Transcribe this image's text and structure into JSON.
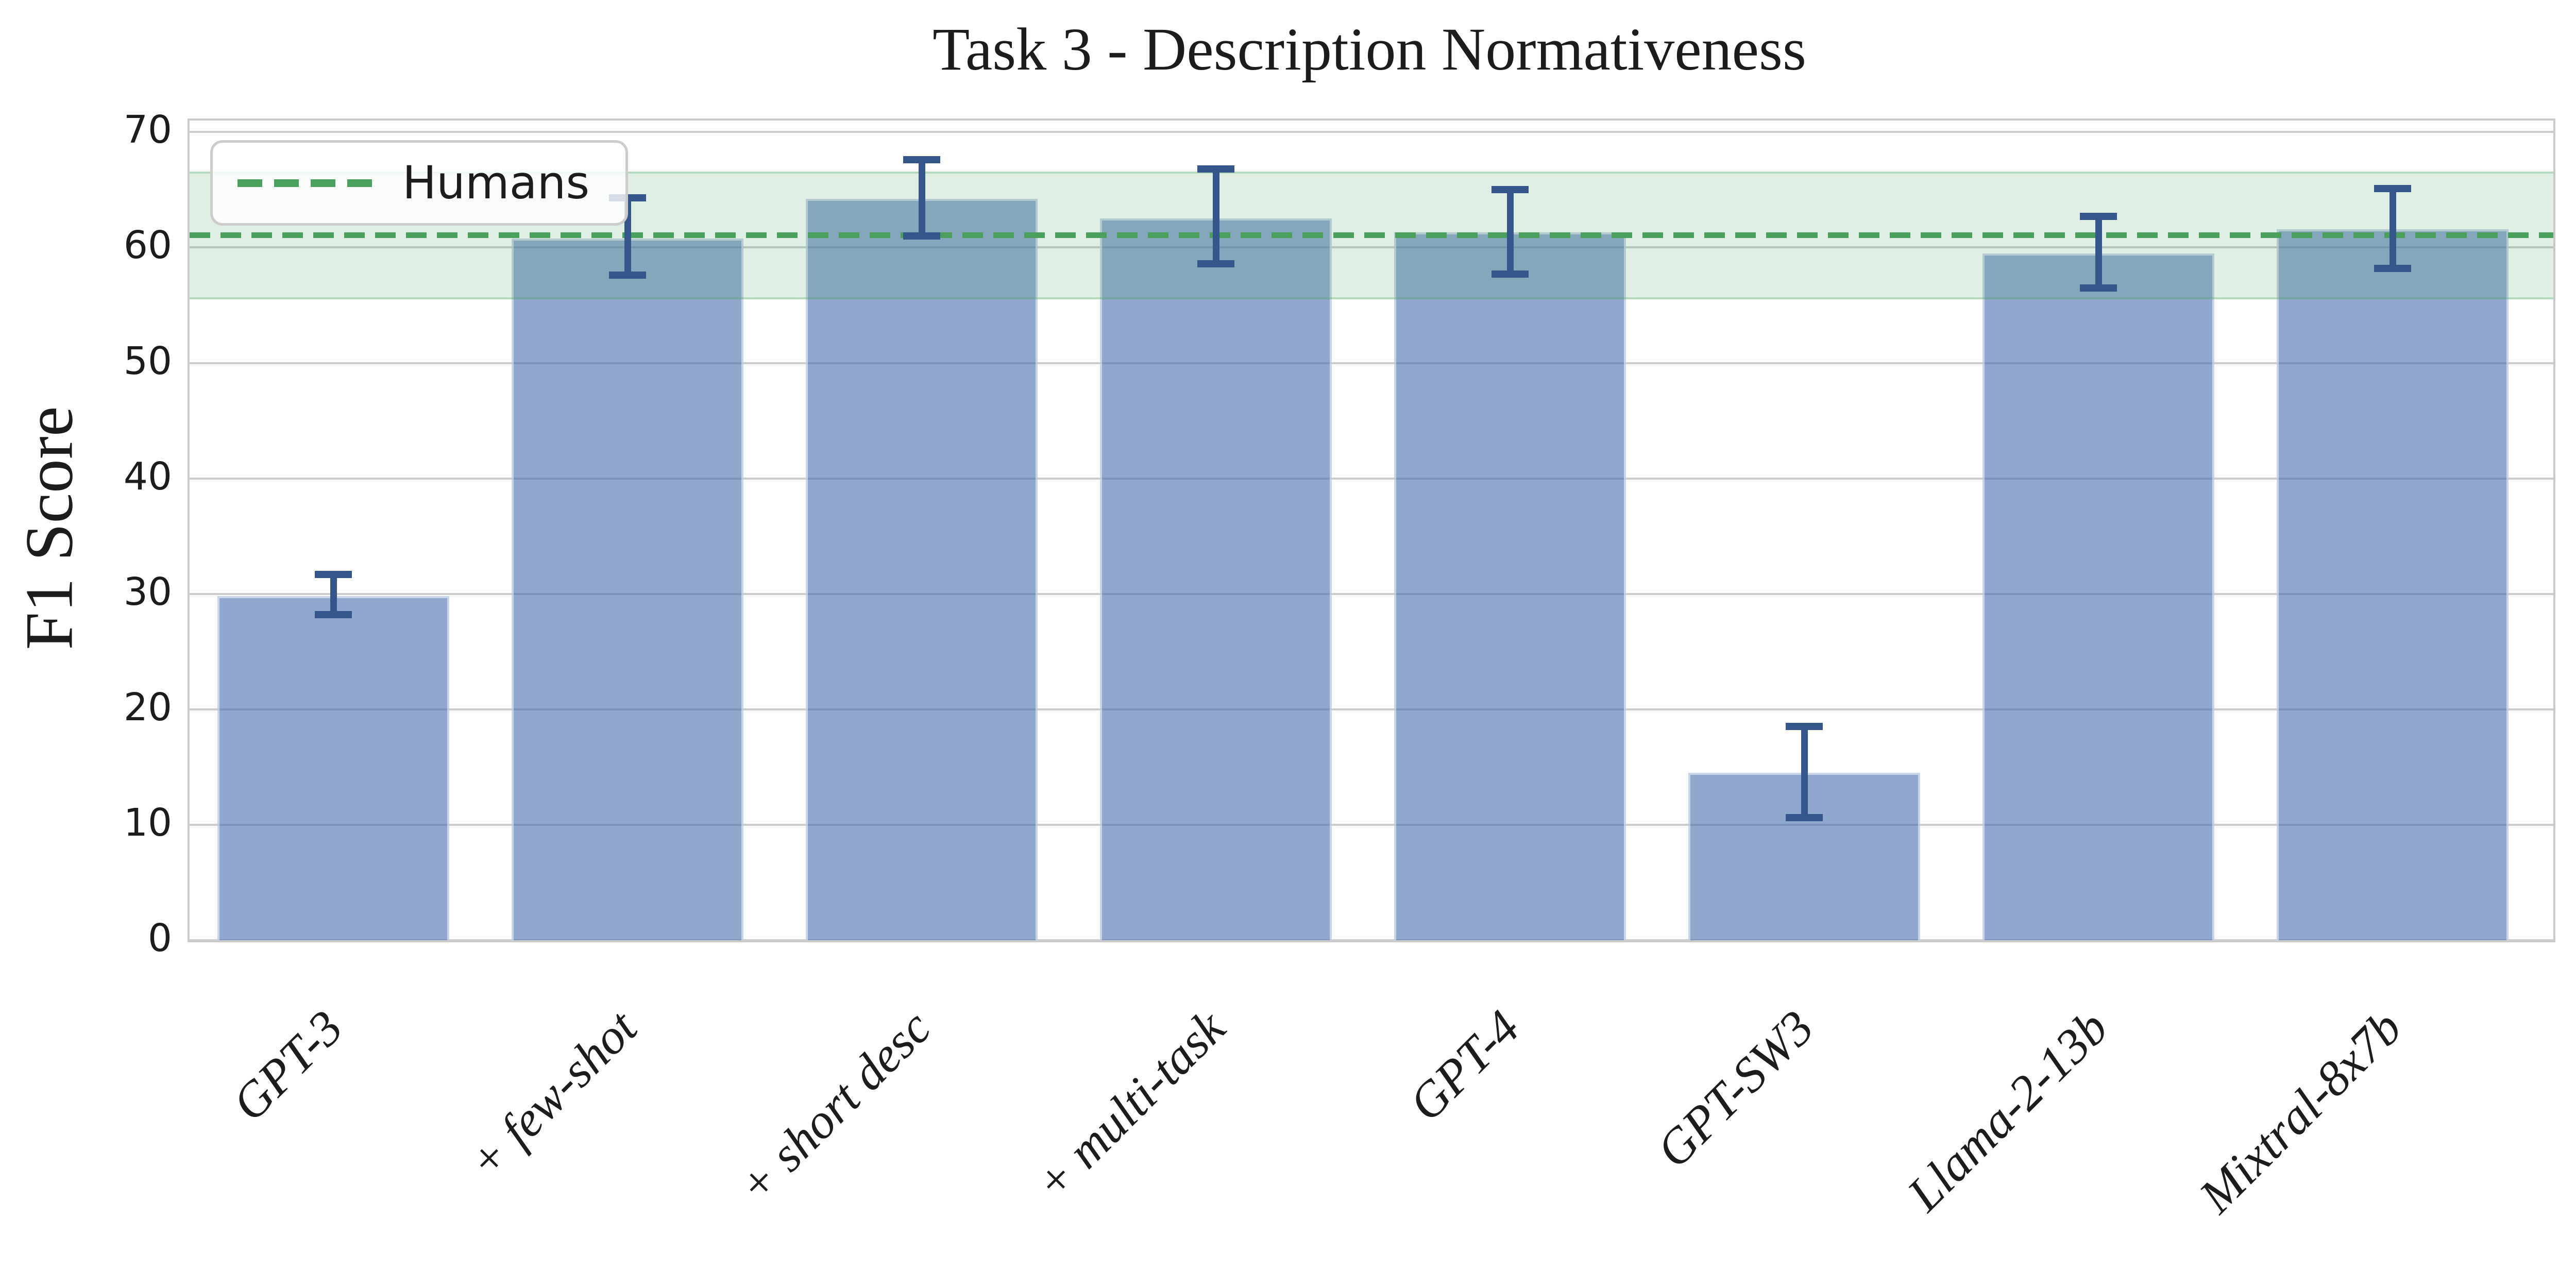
{
  "chart_data": {
    "type": "bar",
    "title": "Task 3 - Description Normativeness",
    "xlabel": "",
    "ylabel": "F1 Score",
    "categories": [
      "GPT-3",
      "+ few-shot",
      "+ short desc",
      "+ multi-task",
      "GPT-4",
      "GPT-SW3",
      "Llama-2-13b",
      "Mixtral-8x7b"
    ],
    "values": [
      29.8,
      60.8,
      64.2,
      62.5,
      61.3,
      14.5,
      59.5,
      61.6
    ],
    "error_low": [
      28.2,
      57.6,
      61.0,
      58.6,
      57.7,
      10.6,
      56.5,
      58.2
    ],
    "error_high": [
      31.7,
      64.3,
      67.6,
      66.8,
      65.0,
      18.5,
      62.7,
      65.1
    ],
    "yticks": [
      0,
      10,
      20,
      30,
      40,
      50,
      60,
      70
    ],
    "ylim": [
      0,
      71
    ],
    "grid": "horizontal",
    "legend": {
      "position": "upper-left",
      "label": "Humans"
    },
    "human_baseline": {
      "label": "Humans",
      "value": 61.1,
      "band_low": 55.5,
      "band_high": 66.6
    },
    "colors": {
      "bar_fill": "#4C72B0",
      "bar_fill_alpha": 0.62,
      "error_bar": "#35568B",
      "human_line": "#4CA05E",
      "human_band": "#55A868",
      "gridline": "#CCCCCC",
      "text": "#1C1C1C"
    }
  }
}
